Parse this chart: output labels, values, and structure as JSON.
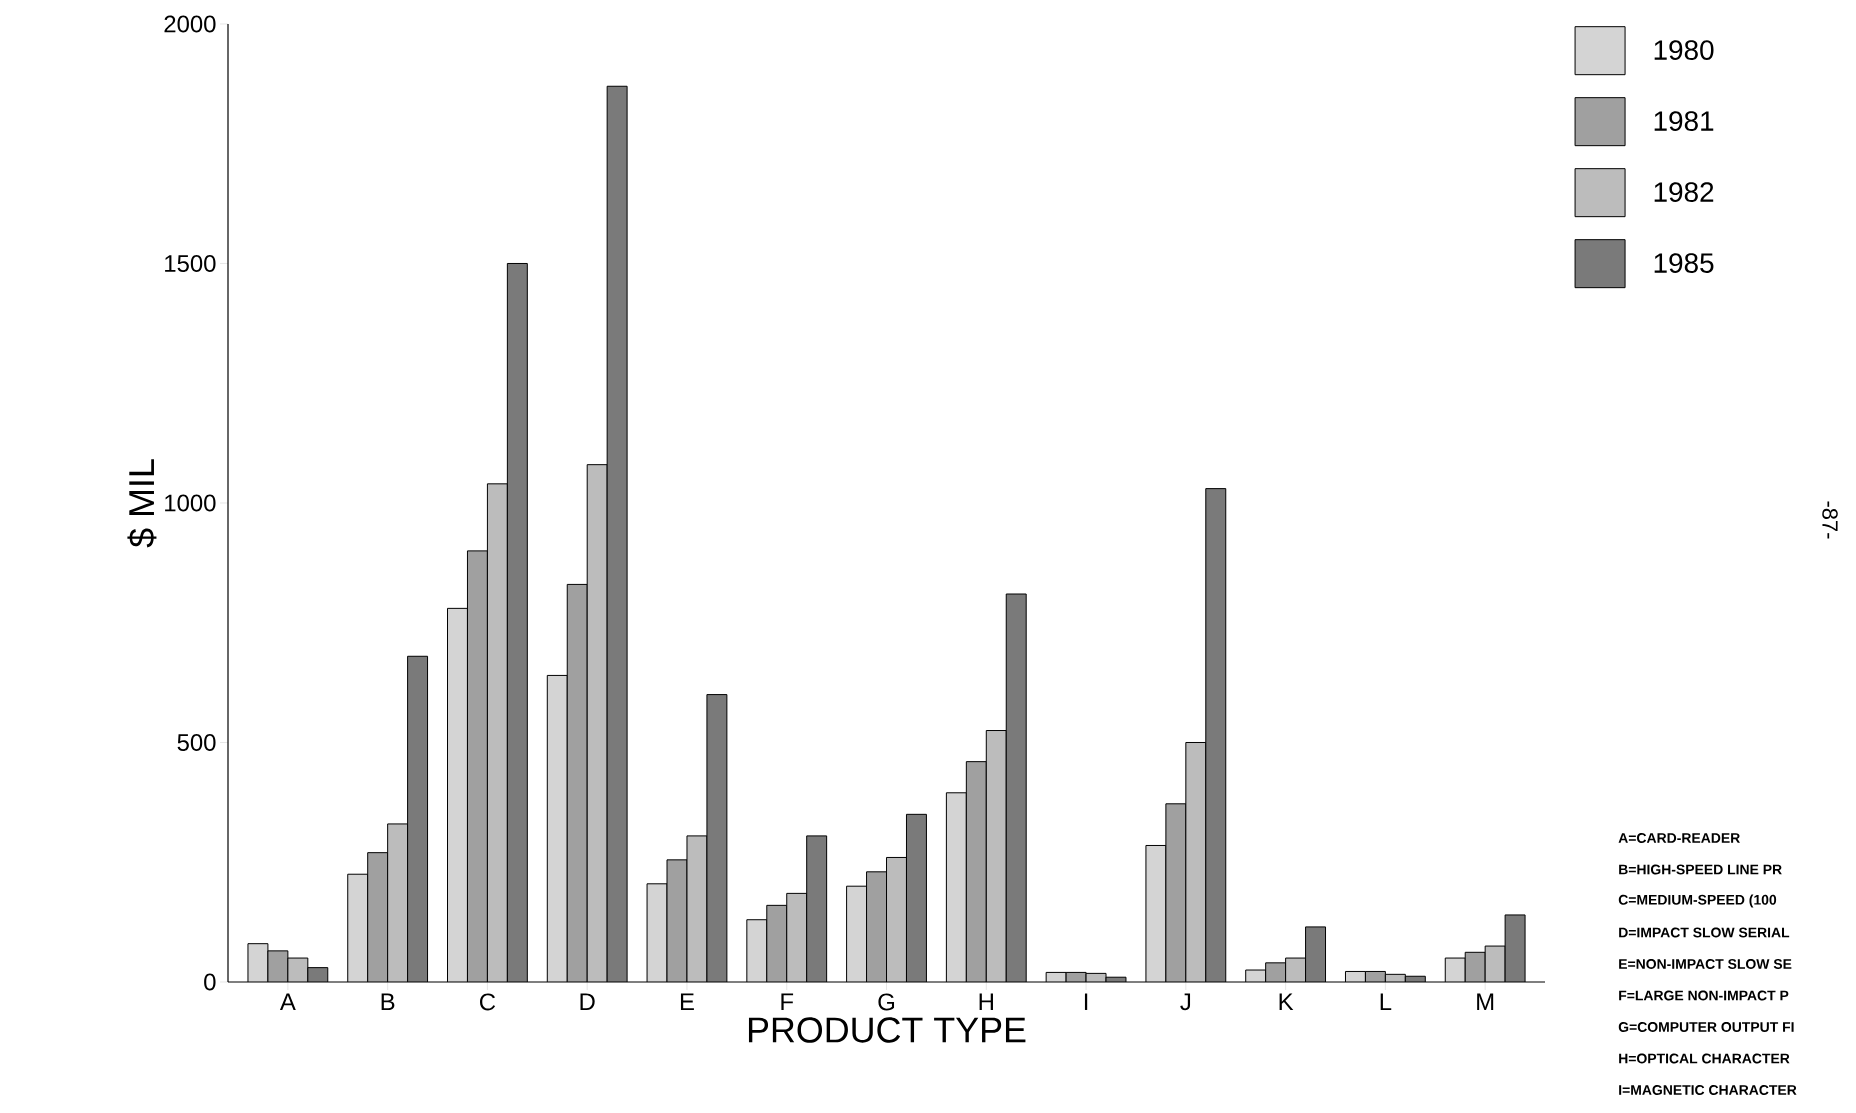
{
  "chart_data": {
    "type": "bar",
    "xlabel": "PRODUCT TYPE",
    "ylabel": "$ MIL",
    "categories": [
      "A",
      "B",
      "C",
      "D",
      "E",
      "F",
      "G",
      "H",
      "I",
      "J",
      "K",
      "L",
      "M"
    ],
    "series": [
      {
        "name": "1980",
        "color": "#d4d4d4",
        "values": [
          80,
          225,
          780,
          640,
          205,
          130,
          200,
          395,
          20,
          285,
          25,
          22,
          50
        ]
      },
      {
        "name": "1981",
        "color": "#a0a0a0",
        "values": [
          65,
          270,
          900,
          830,
          255,
          160,
          230,
          460,
          20,
          372,
          40,
          22,
          62
        ]
      },
      {
        "name": "1982",
        "color": "#bcbcbc",
        "values": [
          50,
          330,
          1040,
          1080,
          305,
          185,
          260,
          525,
          18,
          500,
          50,
          16,
          75
        ]
      },
      {
        "name": "1985",
        "color": "#7a7a7a",
        "values": [
          30,
          680,
          1500,
          1870,
          600,
          305,
          350,
          810,
          10,
          1030,
          115,
          12,
          140
        ]
      }
    ],
    "ylim": [
      0,
      2000
    ],
    "yticks": [
      0,
      500,
      1000,
      1500,
      2000
    ],
    "grid": false,
    "legend": "top right",
    "annotations": [
      "A=CARD-READER",
      "B=HIGH-SPEED LINE PR",
      "C=MEDIUM-SPEED (100",
      "D=IMPACT SLOW SERIAL",
      "E=NON-IMPACT SLOW SE",
      "F=LARGE NON-IMPACT P",
      "G=COMPUTER OUTPUT FI",
      "H=OPTICAL CHARACTER",
      "I=MAGNETIC CHARACTER",
      "-87-"
    ]
  }
}
